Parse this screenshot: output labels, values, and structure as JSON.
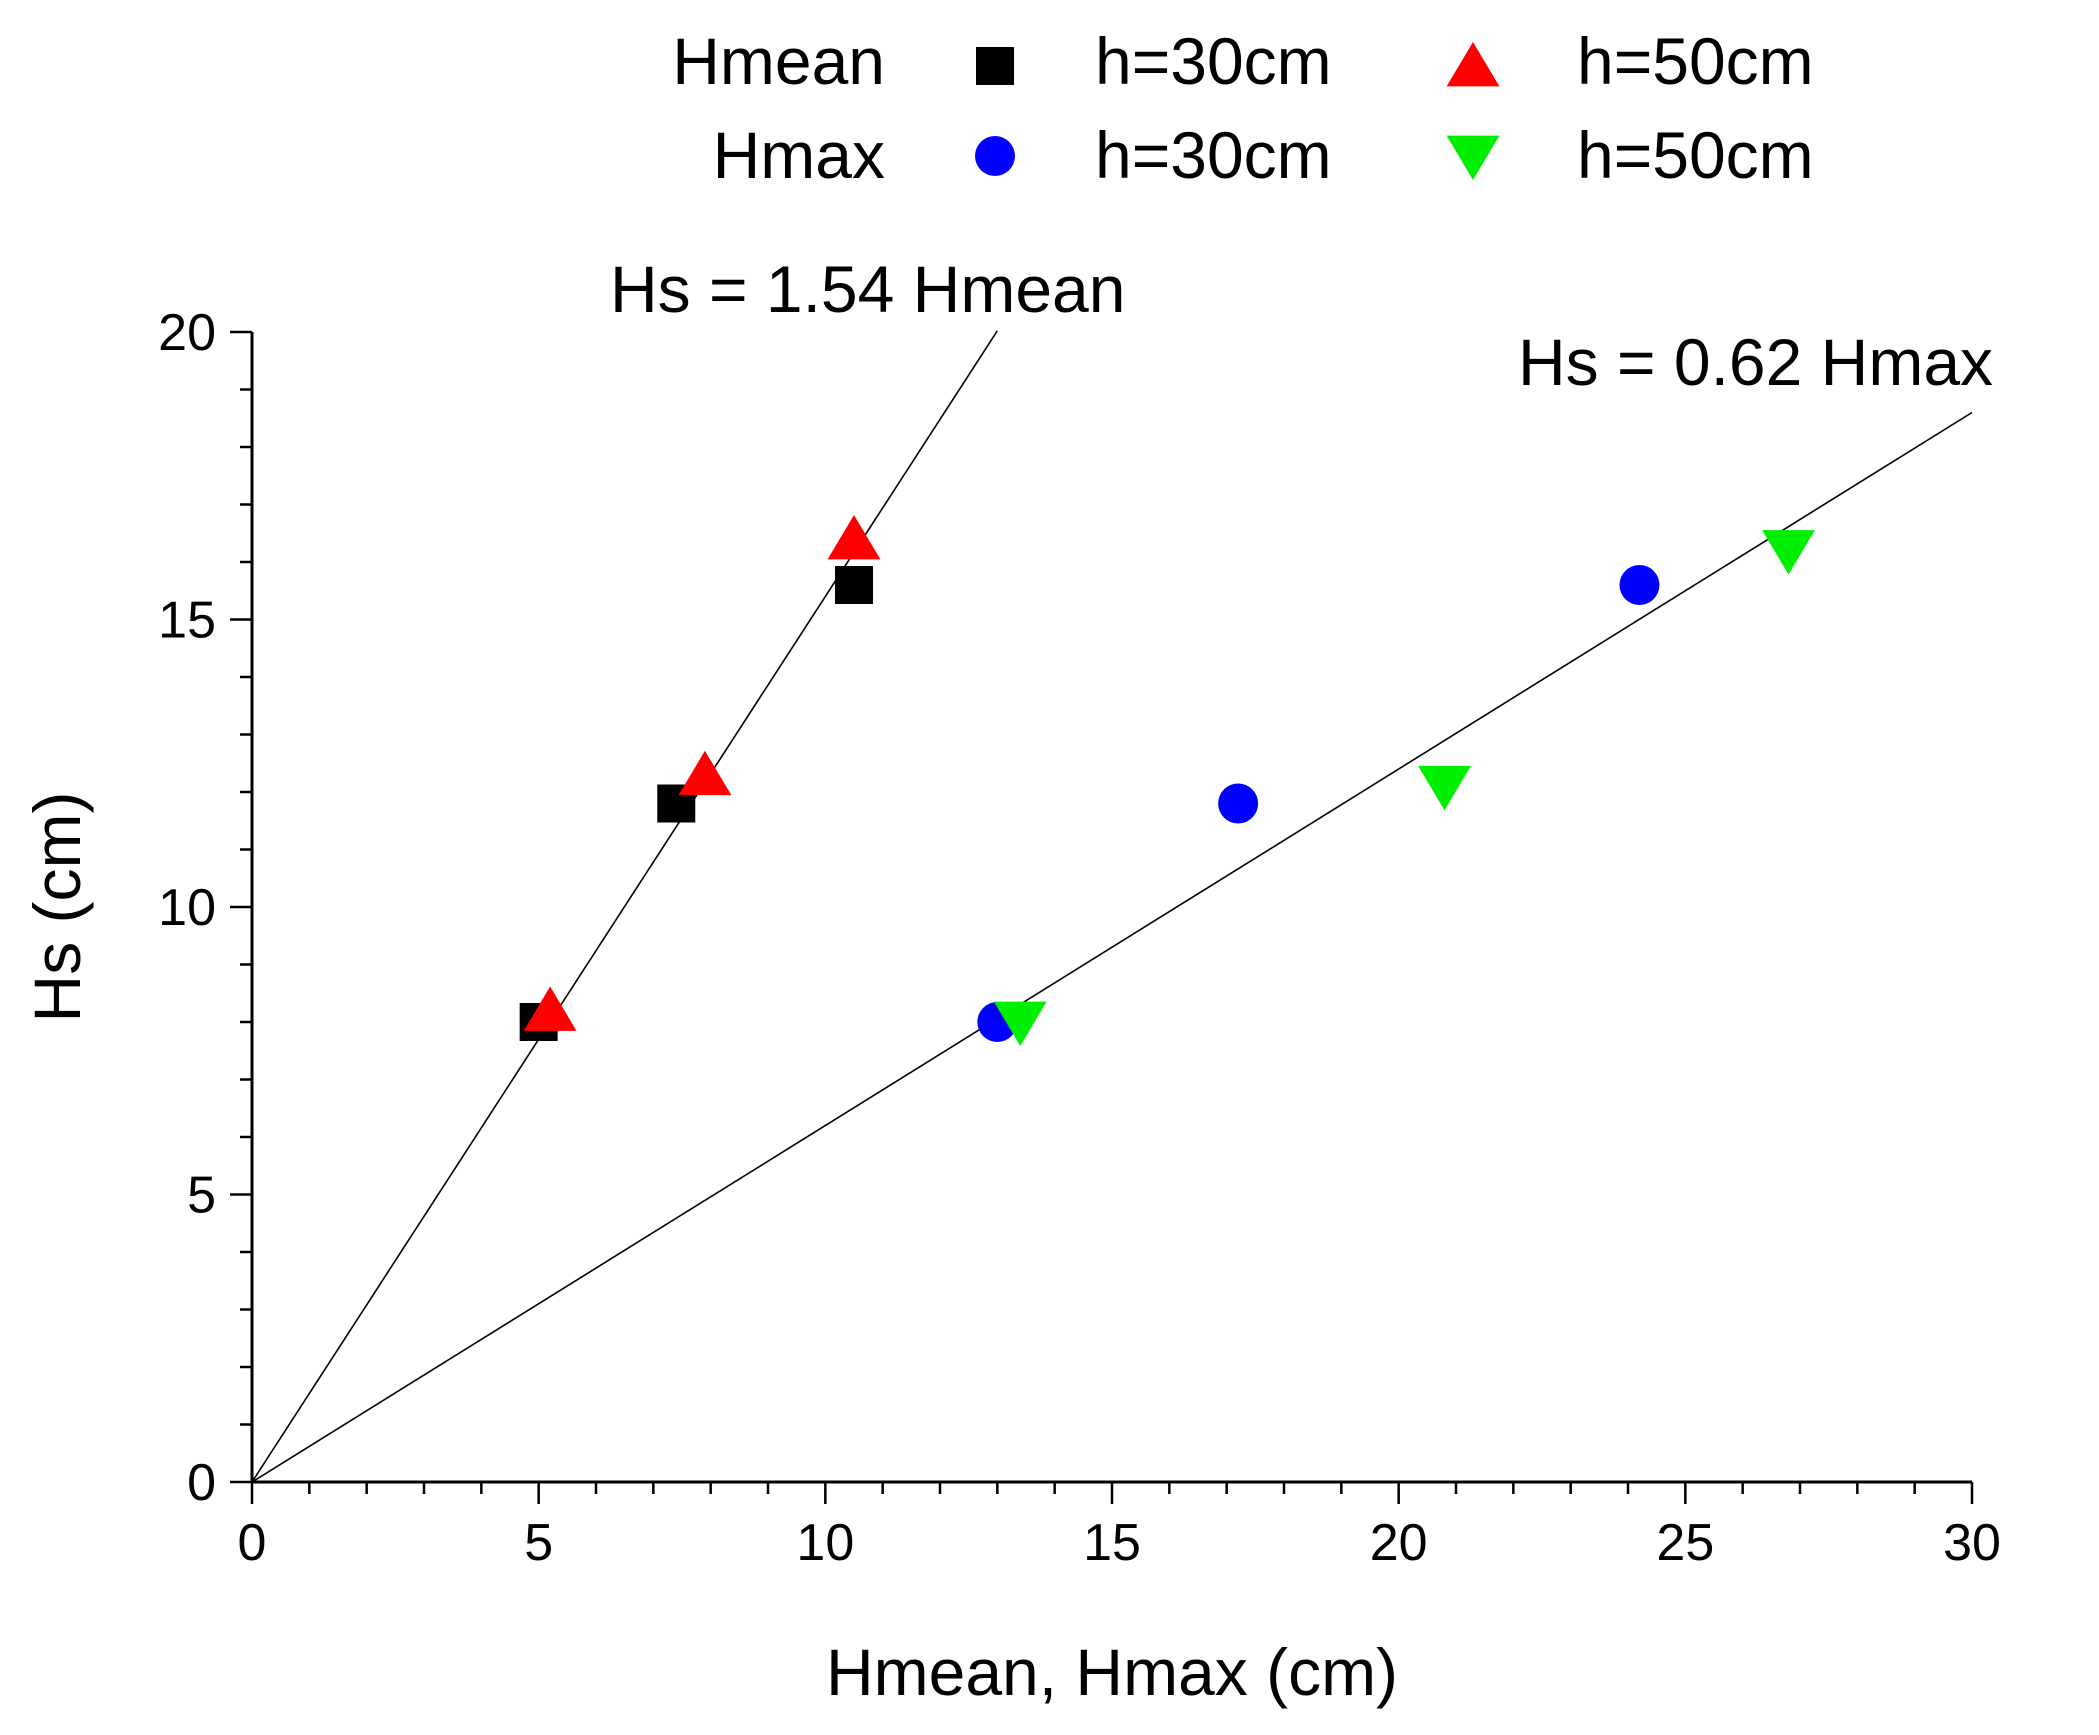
{
  "chart_data": {
    "type": "scatter",
    "title": "",
    "xlabel": "Hmean, Hmax (cm)",
    "ylabel": "Hs (cm)",
    "xlim": [
      0,
      30
    ],
    "ylim": [
      0,
      20
    ],
    "x_ticks": [
      0,
      5,
      10,
      15,
      20,
      25,
      30
    ],
    "y_ticks": [
      0,
      5,
      10,
      15,
      20
    ],
    "x_tick_labels": [
      "0",
      "5",
      "10",
      "15",
      "20",
      "25",
      "30"
    ],
    "y_tick_labels": [
      "0",
      "5",
      "10",
      "15",
      "20"
    ],
    "x_minor_step": 1,
    "y_minor_step": 1,
    "grid": false,
    "legend_position": "top",
    "legend": {
      "row_labels": [
        "Hmean",
        "Hmax"
      ],
      "entries": [
        {
          "row": "Hmean",
          "label": "h=30cm",
          "series": "Hmean h=30cm"
        },
        {
          "row": "Hmean",
          "label": "h=50cm",
          "series": "Hmean h=50cm"
        },
        {
          "row": "Hmax",
          "label": "h=30cm",
          "series": "Hmax h=30cm"
        },
        {
          "row": "Hmax",
          "label": "h=50cm",
          "series": "Hmax h=50cm"
        }
      ]
    },
    "series": [
      {
        "name": "Hmean h=30cm",
        "marker": "square",
        "color": "#000000",
        "x": [
          5.0,
          7.4,
          10.5
        ],
        "y": [
          8.0,
          11.8,
          15.6
        ]
      },
      {
        "name": "Hmean h=50cm",
        "marker": "triangle-up",
        "color": "#ff0000",
        "x": [
          5.2,
          7.9,
          10.5
        ],
        "y": [
          8.2,
          12.3,
          16.4
        ]
      },
      {
        "name": "Hmax h=30cm",
        "marker": "circle",
        "color": "#0000ff",
        "x": [
          13.0,
          17.2,
          24.2
        ],
        "y": [
          8.0,
          11.8,
          15.6
        ]
      },
      {
        "name": "Hmax h=50cm",
        "marker": "triangle-down",
        "color": "#00ee00",
        "x": [
          13.4,
          20.8,
          26.8
        ],
        "y": [
          8.0,
          12.1,
          16.2
        ]
      }
    ],
    "fit_lines": [
      {
        "label": "Hs = 1.54 Hmean",
        "slope": 1.54,
        "x_end": 13.0
      },
      {
        "label": "Hs = 0.62 Hmax",
        "slope": 0.62,
        "x_end": 30.0
      }
    ]
  }
}
